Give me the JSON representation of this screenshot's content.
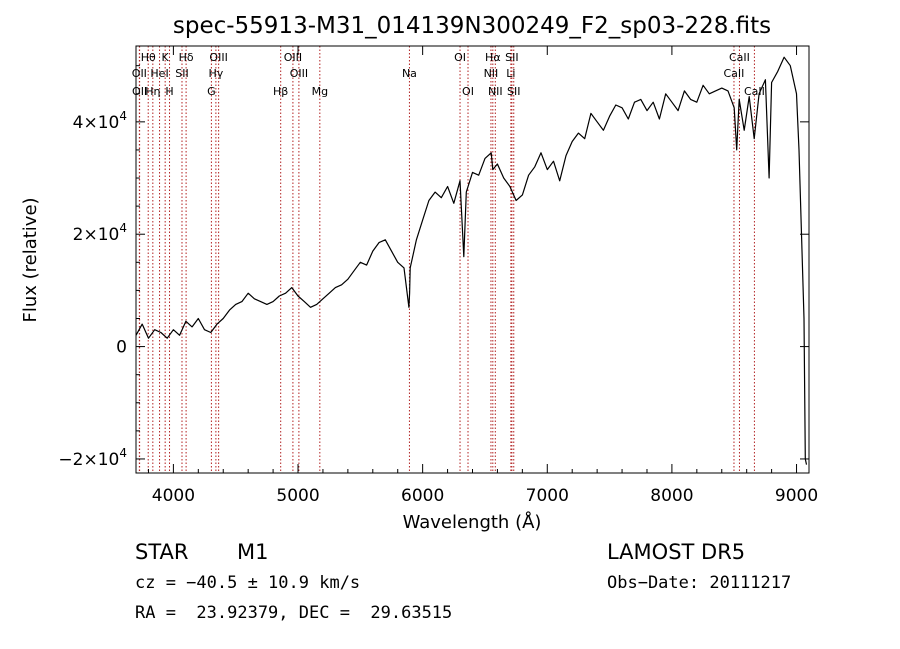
{
  "chart_data": {
    "type": "line",
    "title": "spec-55913-M31_014139N300249_F2_sp03-228.fits",
    "xlabel": "Wavelength (Å)",
    "ylabel": "Flux (relative)",
    "xlim": [
      3700,
      9100
    ],
    "ylim": [
      -22500,
      53500
    ],
    "xticks": [
      "4000",
      "5000",
      "6000",
      "7000",
      "8000",
      "9000"
    ],
    "xtick_values": [
      4000,
      5000,
      6000,
      7000,
      8000,
      9000
    ],
    "yticks": [
      {
        "value": -20000,
        "mantissa": "−2×10",
        "exp": "4"
      },
      {
        "value": 0,
        "mantissa": "0",
        "exp": ""
      },
      {
        "value": 20000,
        "mantissa": "2×10",
        "exp": "4"
      },
      {
        "value": 40000,
        "mantissa": "4×10",
        "exp": "4"
      }
    ],
    "series": [
      {
        "color": "#000000",
        "x": [
          3700,
          3750,
          3800,
          3850,
          3900,
          3950,
          4000,
          4050,
          4100,
          4150,
          4200,
          4250,
          4300,
          4350,
          4400,
          4450,
          4500,
          4550,
          4600,
          4650,
          4700,
          4750,
          4800,
          4850,
          4900,
          4950,
          5000,
          5050,
          5100,
          5150,
          5200,
          5250,
          5300,
          5350,
          5400,
          5450,
          5500,
          5550,
          5600,
          5650,
          5700,
          5750,
          5800,
          5850,
          5890,
          5895,
          5900,
          5950,
          6000,
          6050,
          6100,
          6150,
          6200,
          6250,
          6300,
          6330,
          6350,
          6400,
          6450,
          6500,
          6550,
          6563,
          6600,
          6650,
          6700,
          6750,
          6800,
          6850,
          6900,
          6950,
          7000,
          7050,
          7100,
          7150,
          7200,
          7250,
          7300,
          7350,
          7400,
          7450,
          7500,
          7550,
          7600,
          7650,
          7700,
          7750,
          7800,
          7850,
          7900,
          7950,
          8000,
          8050,
          8100,
          8150,
          8200,
          8250,
          8300,
          8350,
          8400,
          8450,
          8500,
          8520,
          8540,
          8580,
          8620,
          8660,
          8700,
          8750,
          8780,
          8800,
          8850,
          8900,
          8950,
          9000,
          9020,
          9040,
          9060,
          9070,
          9080
        ],
        "y": [
          2000,
          4000,
          1500,
          3000,
          2500,
          1500,
          3000,
          2000,
          4500,
          3500,
          5000,
          3000,
          2500,
          4000,
          5000,
          6500,
          7500,
          8000,
          9500,
          8500,
          8000,
          7500,
          8000,
          9000,
          9500,
          10500,
          9000,
          8000,
          7000,
          7500,
          8500,
          9500,
          10500,
          11000,
          12000,
          13500,
          15000,
          14500,
          17000,
          18500,
          19000,
          17000,
          15000,
          14000,
          7000,
          9500,
          14000,
          19000,
          22500,
          26000,
          27500,
          26500,
          28500,
          25500,
          29500,
          16000,
          27500,
          31000,
          30500,
          33500,
          34500,
          31500,
          32500,
          30000,
          28500,
          26000,
          27000,
          30500,
          32000,
          34500,
          31500,
          33000,
          29500,
          34000,
          36500,
          38000,
          37000,
          41500,
          40000,
          38500,
          41000,
          43000,
          42500,
          40500,
          43500,
          44000,
          42000,
          43500,
          40500,
          45000,
          43500,
          42000,
          45500,
          44000,
          43500,
          46500,
          45000,
          45500,
          46000,
          45500,
          42500,
          35000,
          44000,
          38500,
          44500,
          37000,
          45000,
          47500,
          30000,
          47000,
          49000,
          51500,
          50000,
          45000,
          35000,
          20000,
          5000,
          -20000,
          -21000
        ]
      }
    ],
    "lines": [
      {
        "label": "Hθ",
        "x": 3798,
        "row": 0
      },
      {
        "label": "OII",
        "x": 3727,
        "row": 1
      },
      {
        "label": "OII",
        "x": 3729,
        "row": 2
      },
      {
        "label": "Hη",
        "x": 3835,
        "row": 2
      },
      {
        "label": "HeI",
        "x": 3889,
        "row": 1
      },
      {
        "label": "K",
        "x": 3934,
        "row": 0
      },
      {
        "label": "H",
        "x": 3969,
        "row": 2
      },
      {
        "label": "Hδ",
        "x": 4102,
        "row": 0
      },
      {
        "label": "SII",
        "x": 4069,
        "row": 1
      },
      {
        "label": "OIII",
        "x": 4363,
        "row": 0
      },
      {
        "label": "Hγ",
        "x": 4341,
        "row": 1
      },
      {
        "label": "G",
        "x": 4305,
        "row": 2
      },
      {
        "label": "Hβ",
        "x": 4861,
        "row": 2
      },
      {
        "label": "OIII",
        "x": 4959,
        "row": 0
      },
      {
        "label": "OIII",
        "x": 5007,
        "row": 1
      },
      {
        "label": "Mg",
        "x": 5175,
        "row": 2
      },
      {
        "label": "Na",
        "x": 5894,
        "row": 1
      },
      {
        "label": "OI",
        "x": 6300,
        "row": 0
      },
      {
        "label": "OI",
        "x": 6364,
        "row": 2
      },
      {
        "label": "Hα",
        "x": 6563,
        "row": 0
      },
      {
        "label": "NII",
        "x": 6548,
        "row": 1
      },
      {
        "label": "NII",
        "x": 6583,
        "row": 2
      },
      {
        "label": "SII",
        "x": 6716,
        "row": 0
      },
      {
        "label": "Li",
        "x": 6708,
        "row": 1
      },
      {
        "label": "SII",
        "x": 6731,
        "row": 2
      },
      {
        "label": "CaII",
        "x": 8542,
        "row": 0
      },
      {
        "label": "CaII",
        "x": 8498,
        "row": 1
      },
      {
        "label": "CaII",
        "x": 8662,
        "row": 2
      }
    ]
  },
  "info": {
    "object_type": "STAR",
    "subclass": "M1",
    "cz": "cz = −40.5 ± 10.9 km/s",
    "radec": "RA =  23.92379, DEC =  29.63515",
    "survey": "LAMOST DR5",
    "obs_date": "Obs−Date: 20111217"
  }
}
